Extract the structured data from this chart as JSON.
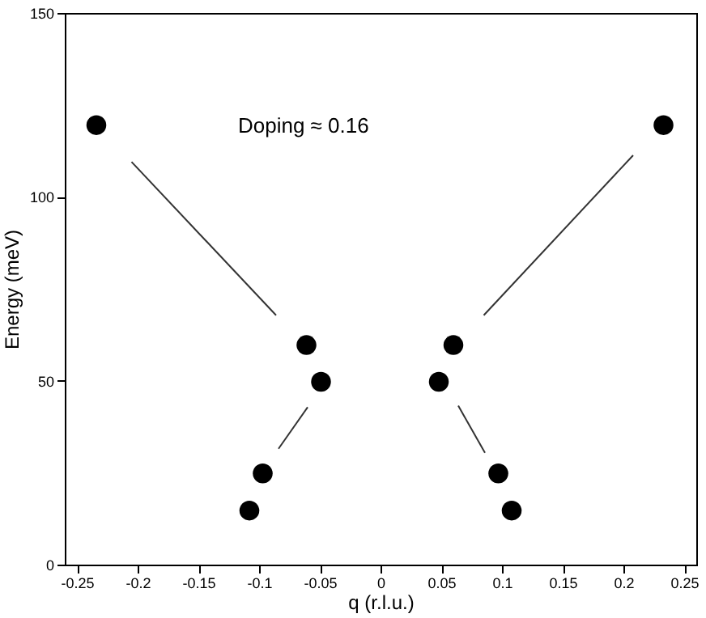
{
  "chart_data": {
    "type": "scatter",
    "xlabel": "q (r.l.u.)",
    "ylabel": "Energy (meV)",
    "annotations": [
      "Doping ≈ 0.16"
    ],
    "xlim": [
      -0.26,
      0.26
    ],
    "xticks": [
      -0.25,
      -0.2,
      -0.15,
      -0.1,
      -0.05,
      0,
      0.05,
      0.1,
      0.15,
      0.2,
      0.25
    ],
    "ylim": [
      0,
      150
    ],
    "yticks": [
      0,
      50,
      100,
      150
    ],
    "grid": false,
    "series": [
      {
        "marker": "circle",
        "color": "#000000",
        "x": [
          -0.234,
          -0.061,
          -0.049,
          -0.097,
          -0.108,
          0.233,
          0.06,
          0.048,
          0.097,
          0.108
        ],
        "values": [
          119.5,
          59.7,
          49.7,
          24.8,
          14.7,
          119.5,
          59.7,
          49.7,
          24.8,
          14.7
        ]
      },
      {
        "type": "line",
        "color": "#333333",
        "line_style": "solid",
        "x": [
          -0.205,
          -0.086
        ],
        "values": [
          109.5,
          67.8
        ]
      },
      {
        "type": "line",
        "color": "#333333",
        "line_style": "solid",
        "x": [
          -0.06,
          -0.084
        ],
        "values": [
          42.8,
          31.5
        ]
      },
      {
        "type": "line",
        "color": "#333333",
        "line_style": "solid",
        "x": [
          0.208,
          0.085
        ],
        "values": [
          111.3,
          67.8
        ]
      },
      {
        "type": "line",
        "color": "#333333",
        "line_style": "solid",
        "x": [
          0.064,
          0.086
        ],
        "values": [
          43.2,
          30.4
        ]
      }
    ]
  }
}
